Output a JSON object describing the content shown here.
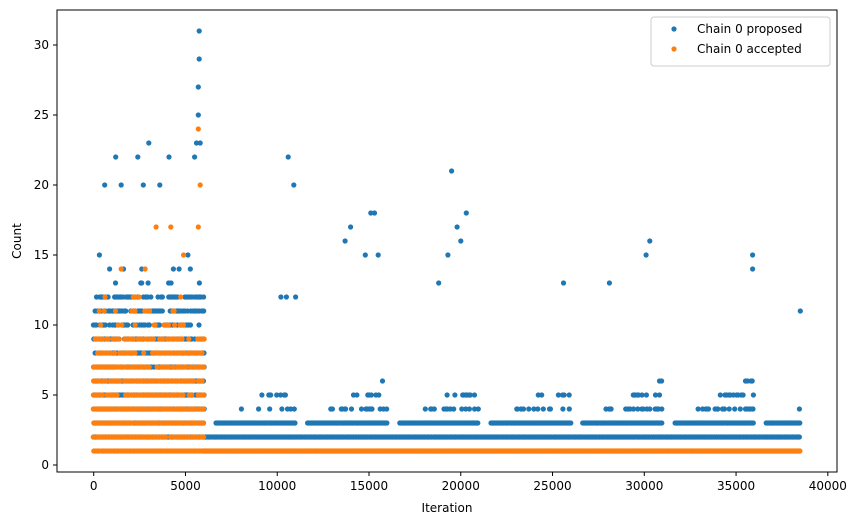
{
  "chart_data": {
    "type": "scatter",
    "title": "",
    "xlabel": "Iteration",
    "ylabel": "Count",
    "xlim": [
      -2000,
      40500
    ],
    "ylim": [
      -0.5,
      32.5
    ],
    "xticks": [
      0,
      5000,
      10000,
      15000,
      20000,
      25000,
      30000,
      35000,
      40000
    ],
    "yticks": [
      0,
      5,
      10,
      15,
      20,
      25,
      30
    ],
    "grid": false,
    "legend_position": "top-right",
    "series": [
      {
        "name": "Chain 0 proposed",
        "color": "#1f77b4",
        "segments": [
          {
            "x_start": 0,
            "x_end": 6000,
            "y_min": 2,
            "y_max": 15,
            "y_dense_max": 12,
            "x_step": 80
          },
          {
            "x_start": 6000,
            "x_end": 38500,
            "y_min": 2,
            "y_max": 6,
            "x_step": 60
          }
        ],
        "outliers": [
          {
            "x": 5750,
            "y": 31
          },
          {
            "x": 5750,
            "y": 29
          },
          {
            "x": 5700,
            "y": 27
          },
          {
            "x": 5700,
            "y": 25
          },
          {
            "x": 5600,
            "y": 23
          },
          {
            "x": 5800,
            "y": 23
          },
          {
            "x": 3000,
            "y": 23
          },
          {
            "x": 1200,
            "y": 22
          },
          {
            "x": 2400,
            "y": 22
          },
          {
            "x": 4100,
            "y": 22
          },
          {
            "x": 5500,
            "y": 22
          },
          {
            "x": 10600,
            "y": 22
          },
          {
            "x": 600,
            "y": 20
          },
          {
            "x": 1500,
            "y": 20
          },
          {
            "x": 2700,
            "y": 20
          },
          {
            "x": 3600,
            "y": 20
          },
          {
            "x": 10900,
            "y": 20
          },
          {
            "x": 19500,
            "y": 21
          },
          {
            "x": 20300,
            "y": 18
          },
          {
            "x": 15100,
            "y": 18
          },
          {
            "x": 15300,
            "y": 18
          },
          {
            "x": 19800,
            "y": 17
          },
          {
            "x": 14000,
            "y": 17
          },
          {
            "x": 13700,
            "y": 16
          },
          {
            "x": 30300,
            "y": 16
          },
          {
            "x": 35900,
            "y": 15
          },
          {
            "x": 35900,
            "y": 14
          },
          {
            "x": 30100,
            "y": 15
          },
          {
            "x": 25600,
            "y": 13
          },
          {
            "x": 28100,
            "y": 13
          },
          {
            "x": 38500,
            "y": 11
          },
          {
            "x": 10200,
            "y": 12
          },
          {
            "x": 10500,
            "y": 12
          },
          {
            "x": 11000,
            "y": 12
          },
          {
            "x": 20000,
            "y": 16
          },
          {
            "x": 15500,
            "y": 15
          },
          {
            "x": 14800,
            "y": 15
          },
          {
            "x": 19300,
            "y": 15
          },
          {
            "x": 18800,
            "y": 13
          }
        ]
      },
      {
        "name": "Chain 0 accepted",
        "color": "#ff7f0e",
        "segments": [
          {
            "x_start": 0,
            "x_end": 6000,
            "y_min": 1,
            "y_max": 12,
            "y_dense_max": 9,
            "x_step": 80
          },
          {
            "x_start": 6000,
            "x_end": 38500,
            "y_min": 1,
            "y_max": 1,
            "x_step": 40
          }
        ],
        "outliers": [
          {
            "x": 5700,
            "y": 24
          },
          {
            "x": 5800,
            "y": 20
          },
          {
            "x": 5700,
            "y": 17
          },
          {
            "x": 4200,
            "y": 17
          },
          {
            "x": 3400,
            "y": 17
          },
          {
            "x": 2800,
            "y": 14
          },
          {
            "x": 1500,
            "y": 14
          },
          {
            "x": 4900,
            "y": 15
          }
        ]
      }
    ]
  }
}
